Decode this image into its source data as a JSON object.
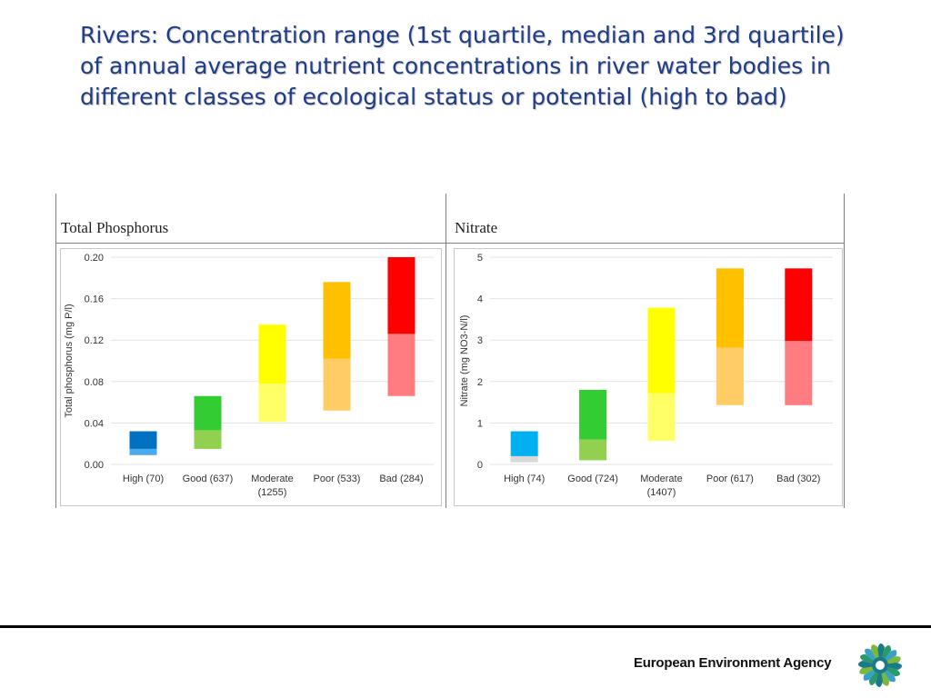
{
  "slide": {
    "title": "Rivers: Concentration range (1st quartile, median and 3rd quartile) of annual average nutrient concentrations in river water bodies in different classes of ecological status or potential (high to bad)"
  },
  "footer": {
    "agency": "European Environment Agency"
  },
  "chart_data": [
    {
      "type": "bar",
      "panel_title": "Total Phosphorus",
      "ylabel": "Total phosphorus (mg P/l)",
      "ylim": [
        0,
        0.2
      ],
      "yticks": [
        "0.00",
        "0.04",
        "0.08",
        "0.12",
        "0.16",
        "0.20"
      ],
      "categories": [
        [
          "High (70)"
        ],
        [
          "Good (637)"
        ],
        [
          "Moderate",
          "(1255)"
        ],
        [
          "Poor (533)"
        ],
        [
          "Bad (284)"
        ]
      ],
      "q1": [
        0.009,
        0.015,
        0.041,
        0.052,
        0.066
      ],
      "median": [
        0.015,
        0.033,
        0.078,
        0.102,
        0.126
      ],
      "q3": [
        0.032,
        0.066,
        0.135,
        0.176,
        0.2
      ],
      "colors_lower": [
        "#4aaaf0",
        "#92d050",
        "#ffff66",
        "#ffcc66",
        "#ff7c80"
      ],
      "colors_upper": [
        "#0070c0",
        "#33cc33",
        "#ffff00",
        "#ffc000",
        "#ff0000"
      ]
    },
    {
      "type": "bar",
      "panel_title": "Nitrate",
      "ylabel": "Nitrate (mg NO3-N/l)",
      "ylim": [
        0,
        5
      ],
      "yticks": [
        "0",
        "1",
        "2",
        "3",
        "4",
        "5"
      ],
      "categories": [
        [
          "High (74)"
        ],
        [
          "Good (724)"
        ],
        [
          "Moderate",
          "(1407)"
        ],
        [
          "Poor (617)"
        ],
        [
          "Bad (302)"
        ]
      ],
      "q1": [
        0.05,
        0.1,
        0.57,
        1.43,
        1.43
      ],
      "median": [
        0.2,
        0.6,
        1.72,
        2.82,
        2.98
      ],
      "q3": [
        0.8,
        1.8,
        3.78,
        4.73,
        4.73
      ],
      "colors_lower": [
        "#d9d9d9",
        "#92d050",
        "#ffff66",
        "#ffcc66",
        "#ff7c80"
      ],
      "colors_upper": [
        "#00b0f0",
        "#33cc33",
        "#ffff00",
        "#ffc000",
        "#ff0000"
      ]
    }
  ]
}
